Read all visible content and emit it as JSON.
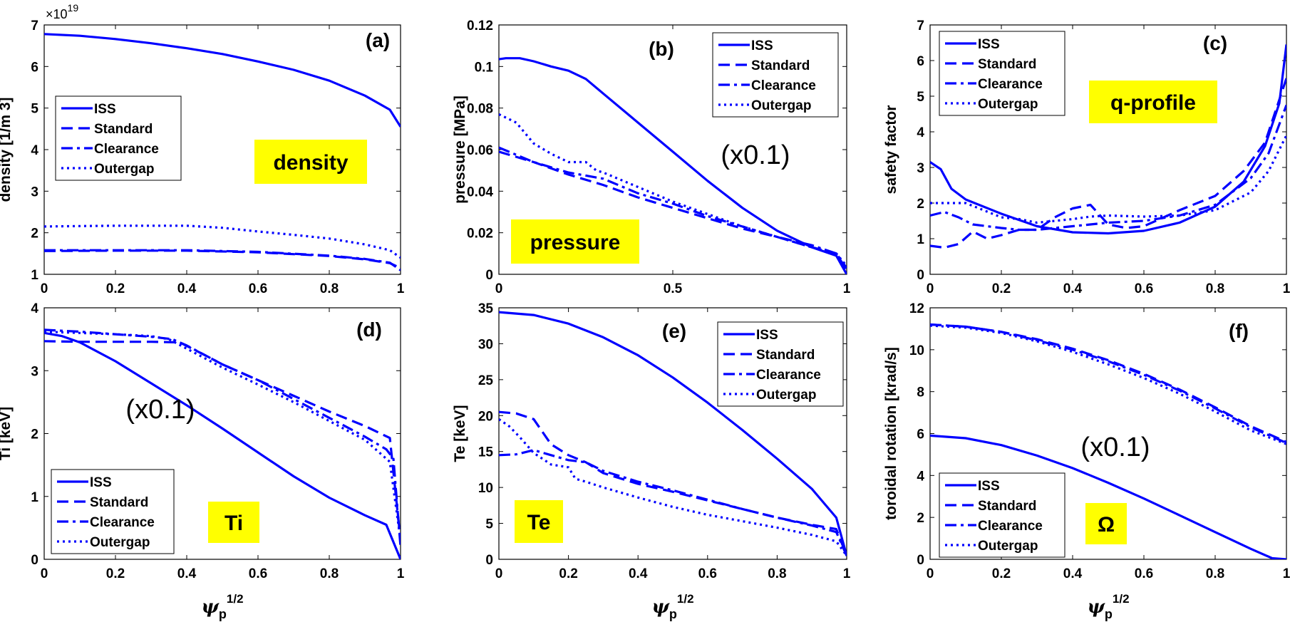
{
  "colors": {
    "line": "#0000ff",
    "badge": "#ffff00",
    "axis": "#000000"
  },
  "legend_labels": [
    "ISS",
    "Standard",
    "Clearance",
    "Outergap"
  ],
  "chart_data": [
    {
      "id": "a",
      "type": "line",
      "panel_label": "(a)",
      "badge": "density",
      "ylabel": "density [1/m  3]",
      "xlabel": "",
      "exponent": "×10 19",
      "annotation": "",
      "xlim": [
        0,
        1
      ],
      "ylim": [
        1,
        7
      ],
      "xticks": [
        "0",
        "0.2",
        "0.4",
        "0.6",
        "0.8",
        "1"
      ],
      "xtick_vals": [
        0,
        0.2,
        0.4,
        0.6,
        0.8,
        1
      ],
      "yticks": [
        "1",
        "2",
        "3",
        "4",
        "5",
        "6",
        "7"
      ],
      "ytick_vals": [
        1,
        2,
        3,
        4,
        5,
        6,
        7
      ],
      "legend_position": "left-middle",
      "series": [
        {
          "name": "ISS",
          "style": "solid",
          "x": [
            0,
            0.1,
            0.2,
            0.3,
            0.4,
            0.5,
            0.6,
            0.7,
            0.8,
            0.9,
            0.97,
            1
          ],
          "y": [
            6.78,
            6.74,
            6.66,
            6.56,
            6.44,
            6.3,
            6.12,
            5.92,
            5.66,
            5.3,
            4.96,
            4.55
          ]
        },
        {
          "name": "Standard",
          "style": "dashed",
          "x": [
            0,
            0.2,
            0.4,
            0.6,
            0.8,
            0.9,
            0.97,
            1
          ],
          "y": [
            1.56,
            1.57,
            1.57,
            1.53,
            1.44,
            1.36,
            1.27,
            1.15
          ]
        },
        {
          "name": "Clearance",
          "style": "dashdot",
          "x": [
            0,
            0.2,
            0.4,
            0.6,
            0.8,
            0.9,
            0.97,
            1
          ],
          "y": [
            1.58,
            1.58,
            1.58,
            1.54,
            1.45,
            1.37,
            1.28,
            1.1
          ]
        },
        {
          "name": "Outergap",
          "style": "dotted",
          "x": [
            0,
            0.1,
            0.2,
            0.3,
            0.4,
            0.5,
            0.6,
            0.7,
            0.8,
            0.9,
            0.97,
            1
          ],
          "y": [
            2.15,
            2.16,
            2.17,
            2.17,
            2.17,
            2.12,
            2.03,
            1.95,
            1.86,
            1.72,
            1.58,
            1.4
          ]
        }
      ]
    },
    {
      "id": "b",
      "type": "line",
      "panel_label": "(b)",
      "badge": "pressure",
      "ylabel": "pressure [MPa]",
      "xlabel": "",
      "exponent": "",
      "annotation": "(x0.1)",
      "xlim": [
        0,
        1
      ],
      "ylim": [
        0,
        0.12
      ],
      "xticks": [
        "0",
        "0.5",
        "1"
      ],
      "xtick_vals": [
        0,
        0.5,
        1
      ],
      "yticks": [
        "0",
        "0.02",
        "0.04",
        "0.06",
        "0.08",
        "0.1",
        "0.12"
      ],
      "ytick_vals": [
        0,
        0.02,
        0.04,
        0.06,
        0.08,
        0.1,
        0.12
      ],
      "legend_position": "top-right",
      "series": [
        {
          "name": "ISS",
          "style": "solid",
          "x": [
            0,
            0.02,
            0.06,
            0.1,
            0.15,
            0.2,
            0.25,
            0.3,
            0.4,
            0.5,
            0.6,
            0.7,
            0.8,
            0.9,
            0.97,
            1
          ],
          "y": [
            0.1035,
            0.104,
            0.104,
            0.1025,
            0.1,
            0.098,
            0.094,
            0.087,
            0.073,
            0.059,
            0.045,
            0.032,
            0.021,
            0.013,
            0.009,
            0.0
          ]
        },
        {
          "name": "Standard",
          "style": "dashed",
          "x": [
            0,
            0.1,
            0.2,
            0.3,
            0.4,
            0.5,
            0.6,
            0.7,
            0.8,
            0.9,
            0.97,
            1
          ],
          "y": [
            0.059,
            0.054,
            0.048,
            0.043,
            0.037,
            0.032,
            0.027,
            0.022,
            0.018,
            0.013,
            0.01,
            0.002
          ]
        },
        {
          "name": "Clearance",
          "style": "dashdot",
          "x": [
            0,
            0.1,
            0.2,
            0.3,
            0.4,
            0.5,
            0.6,
            0.7,
            0.8,
            0.9,
            0.97,
            1
          ],
          "y": [
            0.061,
            0.054,
            0.049,
            0.046,
            0.039,
            0.034,
            0.028,
            0.023,
            0.018,
            0.014,
            0.01,
            0.003
          ]
        },
        {
          "name": "Outergap",
          "style": "dotted",
          "x": [
            0,
            0.05,
            0.1,
            0.15,
            0.2,
            0.25,
            0.28,
            0.3,
            0.4,
            0.5,
            0.6,
            0.7,
            0.8,
            0.9,
            0.97,
            1
          ],
          "y": [
            0.077,
            0.073,
            0.063,
            0.058,
            0.054,
            0.054,
            0.05,
            0.049,
            0.042,
            0.035,
            0.029,
            0.023,
            0.018,
            0.013,
            0.01,
            0.004
          ]
        }
      ]
    },
    {
      "id": "c",
      "type": "line",
      "panel_label": "(c)",
      "badge": "q-profile",
      "ylabel": "safety factor",
      "xlabel": "",
      "exponent": "",
      "annotation": "",
      "xlim": [
        0,
        1
      ],
      "ylim": [
        0,
        7
      ],
      "xticks": [
        "0",
        "0.2",
        "0.4",
        "0.6",
        "0.8",
        "1"
      ],
      "xtick_vals": [
        0,
        0.2,
        0.4,
        0.6,
        0.8,
        1
      ],
      "yticks": [
        "0",
        "1",
        "2",
        "3",
        "4",
        "5",
        "6",
        "7"
      ],
      "ytick_vals": [
        0,
        1,
        2,
        3,
        4,
        5,
        6,
        7
      ],
      "legend_position": "top-left",
      "series": [
        {
          "name": "ISS",
          "style": "solid",
          "x": [
            0,
            0.03,
            0.06,
            0.1,
            0.2,
            0.3,
            0.4,
            0.5,
            0.6,
            0.7,
            0.8,
            0.88,
            0.94,
            0.98,
            1
          ],
          "y": [
            3.15,
            2.95,
            2.4,
            2.1,
            1.7,
            1.35,
            1.18,
            1.15,
            1.22,
            1.45,
            1.9,
            2.6,
            3.6,
            4.8,
            6.45
          ]
        },
        {
          "name": "Standard",
          "style": "dashed",
          "x": [
            0,
            0.04,
            0.08,
            0.12,
            0.16,
            0.2,
            0.25,
            0.3,
            0.35,
            0.4,
            0.45,
            0.5,
            0.55,
            0.6,
            0.7,
            0.8,
            0.88,
            0.94,
            1
          ],
          "y": [
            0.8,
            0.75,
            0.85,
            1.2,
            1.0,
            1.1,
            1.25,
            1.25,
            1.6,
            1.85,
            1.95,
            1.4,
            1.3,
            1.35,
            1.8,
            2.2,
            2.9,
            3.7,
            5.5
          ]
        },
        {
          "name": "Clearance",
          "style": "dashdot",
          "x": [
            0,
            0.04,
            0.08,
            0.12,
            0.16,
            0.2,
            0.25,
            0.3,
            0.35,
            0.4,
            0.45,
            0.5,
            0.6,
            0.7,
            0.8,
            0.9,
            0.95,
            1
          ],
          "y": [
            1.65,
            1.75,
            1.6,
            1.4,
            1.35,
            1.3,
            1.25,
            1.25,
            1.3,
            1.35,
            1.4,
            1.45,
            1.5,
            1.65,
            1.95,
            2.7,
            3.4,
            4.75
          ]
        },
        {
          "name": "Outergap",
          "style": "dotted",
          "x": [
            0,
            0.05,
            0.1,
            0.15,
            0.2,
            0.25,
            0.3,
            0.35,
            0.4,
            0.45,
            0.5,
            0.6,
            0.7,
            0.8,
            0.9,
            0.95,
            1
          ],
          "y": [
            2.0,
            2.0,
            2.0,
            1.8,
            1.6,
            1.55,
            1.45,
            1.5,
            1.55,
            1.62,
            1.65,
            1.62,
            1.65,
            1.8,
            2.3,
            2.9,
            3.9
          ]
        }
      ]
    },
    {
      "id": "d",
      "type": "line",
      "panel_label": "(d)",
      "badge": "Ti",
      "ylabel": "Ti [keV]",
      "xlabel": "ψp1/2",
      "exponent": "",
      "annotation": "(x0.1)",
      "xlim": [
        0,
        1
      ],
      "ylim": [
        0,
        4
      ],
      "xticks": [
        "0",
        "0.2",
        "0.4",
        "0.6",
        "0.8",
        "1"
      ],
      "xtick_vals": [
        0,
        0.2,
        0.4,
        0.6,
        0.8,
        1
      ],
      "yticks": [
        "0",
        "1",
        "2",
        "3",
        "4"
      ],
      "ytick_vals": [
        0,
        1,
        2,
        3,
        4
      ],
      "legend_position": "bottom-left",
      "series": [
        {
          "name": "ISS",
          "style": "solid",
          "x": [
            0,
            0.05,
            0.1,
            0.2,
            0.3,
            0.4,
            0.5,
            0.6,
            0.7,
            0.8,
            0.9,
            0.96,
            1
          ],
          "y": [
            3.6,
            3.55,
            3.45,
            3.15,
            2.8,
            2.45,
            2.08,
            1.7,
            1.32,
            0.98,
            0.7,
            0.55,
            0.0
          ]
        },
        {
          "name": "Standard",
          "style": "dashed",
          "x": [
            0,
            0.1,
            0.2,
            0.3,
            0.38,
            0.45,
            0.5,
            0.6,
            0.7,
            0.8,
            0.9,
            0.97,
            1
          ],
          "y": [
            3.47,
            3.46,
            3.46,
            3.46,
            3.45,
            3.25,
            3.1,
            2.85,
            2.6,
            2.35,
            2.12,
            1.93,
            0.3
          ]
        },
        {
          "name": "Clearance",
          "style": "dashdot",
          "x": [
            0,
            0.1,
            0.2,
            0.3,
            0.36,
            0.4,
            0.5,
            0.6,
            0.7,
            0.8,
            0.9,
            0.96,
            0.98,
            1
          ],
          "y": [
            3.65,
            3.62,
            3.58,
            3.54,
            3.5,
            3.4,
            3.1,
            2.85,
            2.55,
            2.25,
            1.95,
            1.75,
            1.6,
            0.2
          ]
        },
        {
          "name": "Outergap",
          "style": "dotted",
          "x": [
            0,
            0.1,
            0.2,
            0.3,
            0.35,
            0.4,
            0.5,
            0.6,
            0.7,
            0.8,
            0.9,
            0.97,
            1
          ],
          "y": [
            3.62,
            3.6,
            3.58,
            3.55,
            3.5,
            3.35,
            3.05,
            2.78,
            2.5,
            2.2,
            1.9,
            1.55,
            0.3
          ]
        }
      ]
    },
    {
      "id": "e",
      "type": "line",
      "panel_label": "(e)",
      "badge": "Te",
      "ylabel": "Te [keV]",
      "xlabel": "ψp1/2",
      "exponent": "",
      "annotation": "",
      "xlim": [
        0,
        1
      ],
      "ylim": [
        0,
        35
      ],
      "xticks": [
        "0",
        "0.2",
        "0.4",
        "0.6",
        "0.8",
        "1"
      ],
      "xtick_vals": [
        0,
        0.2,
        0.4,
        0.6,
        0.8,
        1
      ],
      "yticks": [
        "0",
        "5",
        "10",
        "15",
        "20",
        "25",
        "30",
        "35"
      ],
      "ytick_vals": [
        0,
        5,
        10,
        15,
        20,
        25,
        30,
        35
      ],
      "legend_position": "top-right",
      "series": [
        {
          "name": "ISS",
          "style": "solid",
          "x": [
            0,
            0.1,
            0.2,
            0.3,
            0.4,
            0.5,
            0.6,
            0.7,
            0.8,
            0.9,
            0.97,
            1
          ],
          "y": [
            34.4,
            34.0,
            32.8,
            30.9,
            28.4,
            25.3,
            21.8,
            18.0,
            14.0,
            9.8,
            5.8,
            0.5
          ]
        },
        {
          "name": "Standard",
          "style": "dashed",
          "x": [
            0,
            0.05,
            0.1,
            0.15,
            0.2,
            0.25,
            0.3,
            0.4,
            0.5,
            0.6,
            0.7,
            0.8,
            0.9,
            0.97,
            1
          ],
          "y": [
            20.5,
            20.3,
            19.5,
            16.0,
            14.5,
            13.5,
            12.0,
            10.5,
            9.4,
            8.2,
            7.0,
            5.8,
            4.8,
            4.2,
            0.5
          ]
        },
        {
          "name": "Clearance",
          "style": "dashdot",
          "x": [
            0,
            0.05,
            0.1,
            0.15,
            0.2,
            0.25,
            0.3,
            0.4,
            0.5,
            0.6,
            0.7,
            0.8,
            0.9,
            0.97,
            1
          ],
          "y": [
            14.5,
            14.6,
            15.2,
            14.5,
            13.8,
            13.5,
            12.3,
            10.8,
            9.6,
            8.3,
            7.0,
            5.8,
            4.7,
            3.8,
            0.5
          ]
        },
        {
          "name": "Outergap",
          "style": "dotted",
          "x": [
            0,
            0.03,
            0.06,
            0.1,
            0.15,
            0.2,
            0.22,
            0.25,
            0.3,
            0.4,
            0.5,
            0.6,
            0.7,
            0.8,
            0.9,
            0.97,
            1
          ],
          "y": [
            19.5,
            18.5,
            17.0,
            14.8,
            13.2,
            12.8,
            11.2,
            10.8,
            10.0,
            8.6,
            7.3,
            6.2,
            5.3,
            4.4,
            3.4,
            2.5,
            0.5
          ]
        }
      ]
    },
    {
      "id": "f",
      "type": "line",
      "panel_label": "(f)",
      "badge": "Ω",
      "ylabel": "toroidal rotation [krad/s]",
      "xlabel": "ψp1/2",
      "exponent": "",
      "annotation": "(x0.1)",
      "xlim": [
        0,
        1
      ],
      "ylim": [
        0,
        12
      ],
      "xticks": [
        "0",
        "0.2",
        "0.4",
        "0.6",
        "0.8",
        "1"
      ],
      "xtick_vals": [
        0,
        0.2,
        0.4,
        0.6,
        0.8,
        1
      ],
      "yticks": [
        "0",
        "2",
        "4",
        "6",
        "8",
        "10",
        "12"
      ],
      "ytick_vals": [
        0,
        2,
        4,
        6,
        8,
        10,
        12
      ],
      "legend_position": "bottom-left",
      "series": [
        {
          "name": "ISS",
          "style": "solid",
          "x": [
            0,
            0.1,
            0.2,
            0.3,
            0.4,
            0.5,
            0.6,
            0.7,
            0.8,
            0.9,
            0.96,
            1
          ],
          "y": [
            5.9,
            5.78,
            5.45,
            4.95,
            4.35,
            3.65,
            2.9,
            2.1,
            1.3,
            0.5,
            0.05,
            0.0
          ]
        },
        {
          "name": "Standard",
          "style": "dashed",
          "x": [
            0,
            0.1,
            0.2,
            0.3,
            0.4,
            0.5,
            0.6,
            0.7,
            0.8,
            0.9,
            1
          ],
          "y": [
            11.2,
            11.1,
            10.85,
            10.5,
            10.05,
            9.5,
            8.85,
            8.1,
            7.25,
            6.35,
            5.6
          ]
        },
        {
          "name": "Clearance",
          "style": "dashdot",
          "x": [
            0,
            0.1,
            0.2,
            0.3,
            0.4,
            0.5,
            0.6,
            0.7,
            0.8,
            0.9,
            1
          ],
          "y": [
            11.2,
            11.1,
            10.85,
            10.45,
            10.0,
            9.45,
            8.8,
            8.05,
            7.2,
            6.3,
            5.55
          ]
        },
        {
          "name": "Outergap",
          "style": "dotted",
          "x": [
            0,
            0.1,
            0.2,
            0.3,
            0.4,
            0.5,
            0.6,
            0.7,
            0.8,
            0.9,
            1
          ],
          "y": [
            11.15,
            11.05,
            10.8,
            10.4,
            9.9,
            9.3,
            8.65,
            7.9,
            7.05,
            6.15,
            5.5
          ]
        }
      ]
    }
  ]
}
